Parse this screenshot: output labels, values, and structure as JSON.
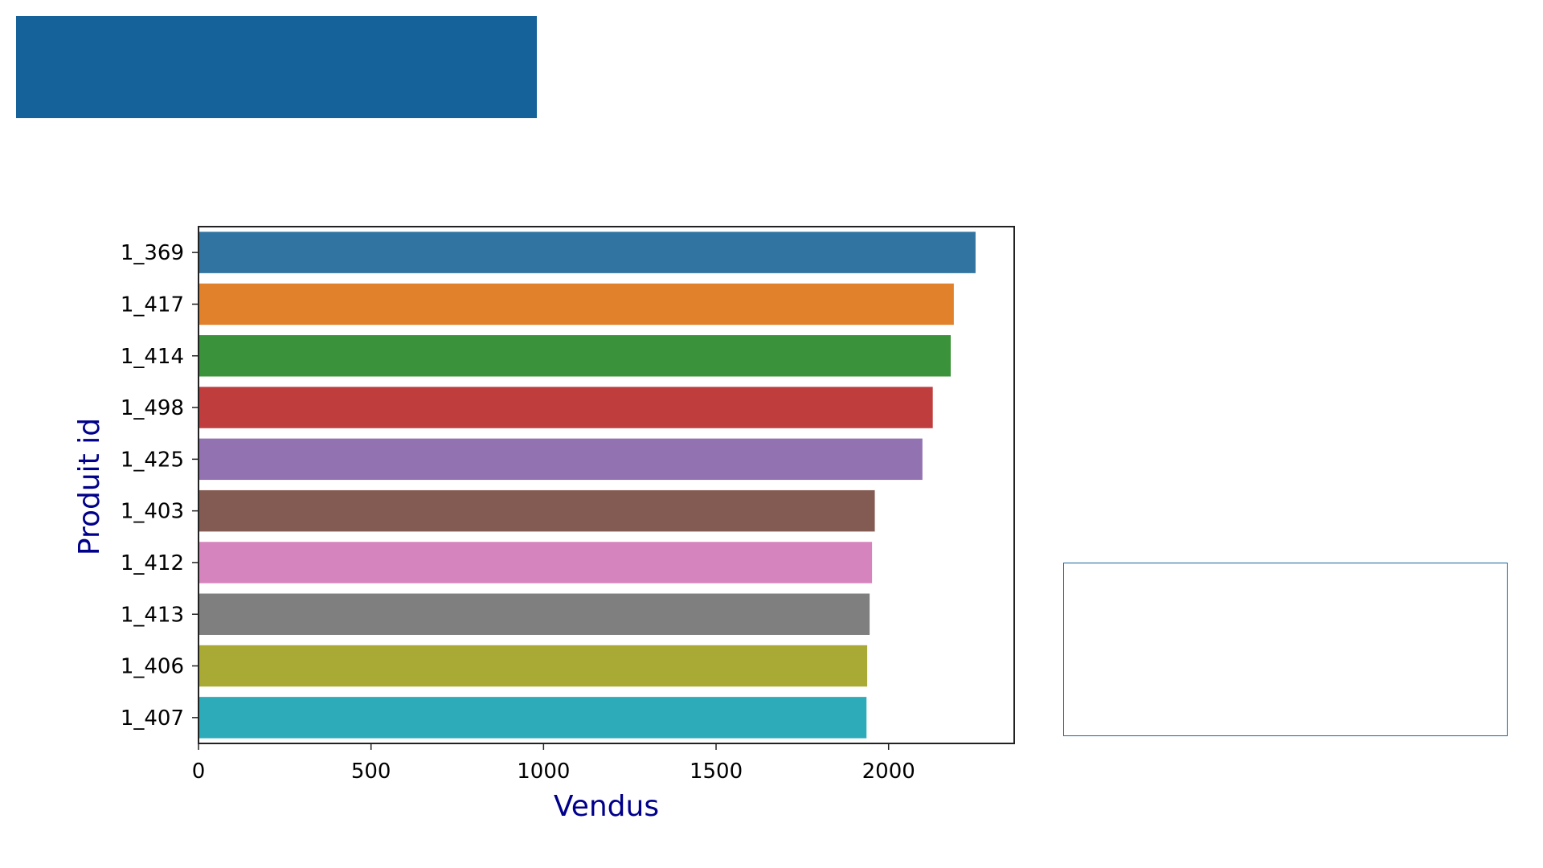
{
  "slide": {
    "banner_color": "#15629a",
    "text_box_border": "#1a6496"
  },
  "chart_data": {
    "type": "bar",
    "orientation": "horizontal",
    "categories": [
      "1_369",
      "1_417",
      "1_414",
      "1_498",
      "1_425",
      "1_403",
      "1_412",
      "1_413",
      "1_406",
      "1_407"
    ],
    "values": [
      2252,
      2189,
      2180,
      2128,
      2098,
      1960,
      1952,
      1945,
      1938,
      1936
    ],
    "colors": [
      "#3274a1",
      "#e1812c",
      "#3a923a",
      "#c03d3e",
      "#9372b2",
      "#845b53",
      "#d684bd",
      "#7f7f7f",
      "#a9aa35",
      "#2eabb8"
    ],
    "xlabel": "Vendus",
    "ylabel": "Produit id",
    "xlim": [
      0,
      2364
    ],
    "xticks": [
      0,
      500,
      1000,
      1500,
      2000
    ],
    "grid": false
  }
}
